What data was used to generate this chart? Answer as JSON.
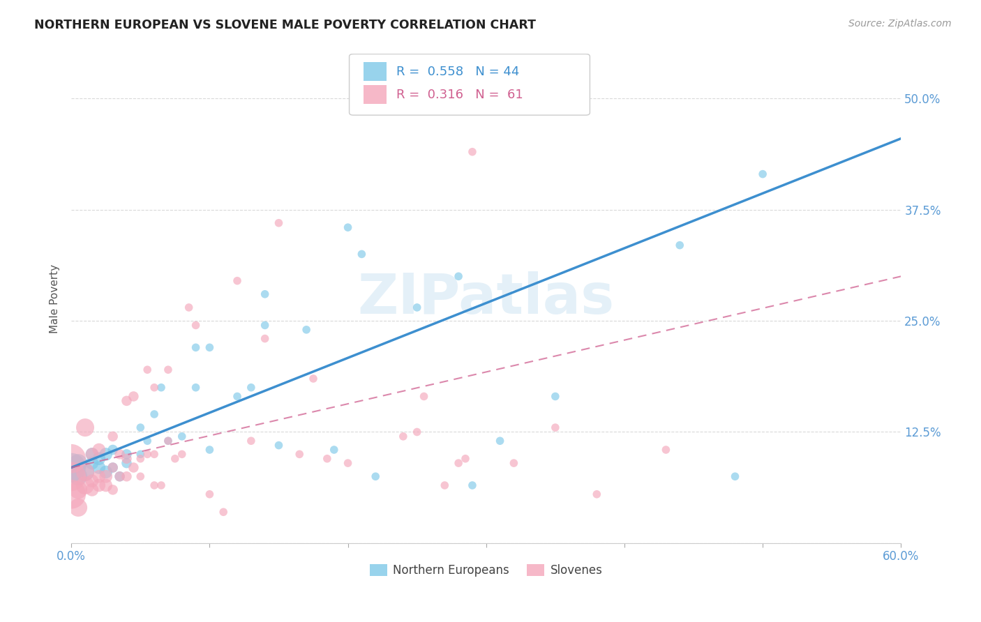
{
  "title": "NORTHERN EUROPEAN VS SLOVENE MALE POVERTY CORRELATION CHART",
  "source": "Source: ZipAtlas.com",
  "ylabel": "Male Poverty",
  "watermark": "ZIPatlas",
  "xlim": [
    0.0,
    0.6
  ],
  "ylim": [
    0.0,
    0.55
  ],
  "yticks": [
    0.0,
    0.125,
    0.25,
    0.375,
    0.5
  ],
  "ytick_labels_right": [
    "",
    "12.5%",
    "25.0%",
    "37.5%",
    "50.0%"
  ],
  "xticks": [
    0.0,
    0.1,
    0.2,
    0.3,
    0.4,
    0.5,
    0.6
  ],
  "xtick_labels": [
    "0.0%",
    "",
    "",
    "",
    "",
    "",
    "60.0%"
  ],
  "blue_R": 0.558,
  "blue_N": 44,
  "pink_R": 0.316,
  "pink_N": 61,
  "blue_color": "#7ec8e8",
  "pink_color": "#f4a7bb",
  "blue_line_color": "#3d8fcf",
  "pink_line_color": "#d06090",
  "title_color": "#222222",
  "axis_color": "#5b9bd5",
  "grid_color": "#d0d0d0",
  "blue_line_x0": 0.0,
  "blue_line_y0": 0.085,
  "blue_line_x1": 0.6,
  "blue_line_y1": 0.455,
  "pink_line_x0": 0.0,
  "pink_line_y0": 0.085,
  "pink_line_x1": 0.6,
  "pink_line_y1": 0.3,
  "blue_points_x": [
    0.0,
    0.005,
    0.005,
    0.01,
    0.015,
    0.015,
    0.02,
    0.02,
    0.025,
    0.025,
    0.03,
    0.03,
    0.035,
    0.04,
    0.04,
    0.05,
    0.05,
    0.055,
    0.06,
    0.065,
    0.07,
    0.08,
    0.09,
    0.09,
    0.1,
    0.1,
    0.12,
    0.13,
    0.14,
    0.14,
    0.15,
    0.17,
    0.19,
    0.2,
    0.21,
    0.22,
    0.25,
    0.28,
    0.29,
    0.31,
    0.35,
    0.44,
    0.48,
    0.5
  ],
  "blue_points_y": [
    0.085,
    0.075,
    0.09,
    0.08,
    0.09,
    0.1,
    0.085,
    0.095,
    0.08,
    0.1,
    0.085,
    0.105,
    0.075,
    0.09,
    0.1,
    0.1,
    0.13,
    0.115,
    0.145,
    0.175,
    0.115,
    0.12,
    0.22,
    0.175,
    0.105,
    0.22,
    0.165,
    0.175,
    0.245,
    0.28,
    0.11,
    0.24,
    0.105,
    0.355,
    0.325,
    0.075,
    0.265,
    0.3,
    0.065,
    0.115,
    0.165,
    0.335,
    0.075,
    0.415
  ],
  "pink_points_x": [
    0.0,
    0.0,
    0.0,
    0.005,
    0.005,
    0.01,
    0.01,
    0.01,
    0.015,
    0.015,
    0.015,
    0.02,
    0.02,
    0.02,
    0.025,
    0.025,
    0.03,
    0.03,
    0.03,
    0.035,
    0.035,
    0.04,
    0.04,
    0.04,
    0.045,
    0.045,
    0.05,
    0.05,
    0.055,
    0.055,
    0.06,
    0.06,
    0.06,
    0.065,
    0.07,
    0.07,
    0.075,
    0.08,
    0.085,
    0.09,
    0.1,
    0.11,
    0.12,
    0.13,
    0.14,
    0.15,
    0.165,
    0.175,
    0.185,
    0.2,
    0.24,
    0.25,
    0.255,
    0.27,
    0.28,
    0.285,
    0.29,
    0.32,
    0.35,
    0.38,
    0.43
  ],
  "pink_points_y": [
    0.055,
    0.075,
    0.095,
    0.04,
    0.06,
    0.065,
    0.08,
    0.13,
    0.06,
    0.07,
    0.1,
    0.065,
    0.075,
    0.105,
    0.065,
    0.075,
    0.06,
    0.085,
    0.12,
    0.075,
    0.1,
    0.075,
    0.095,
    0.16,
    0.085,
    0.165,
    0.075,
    0.095,
    0.1,
    0.195,
    0.065,
    0.1,
    0.175,
    0.065,
    0.115,
    0.195,
    0.095,
    0.1,
    0.265,
    0.245,
    0.055,
    0.035,
    0.295,
    0.115,
    0.23,
    0.36,
    0.1,
    0.185,
    0.095,
    0.09,
    0.12,
    0.125,
    0.165,
    0.065,
    0.09,
    0.095,
    0.44,
    0.09,
    0.13,
    0.055,
    0.105
  ]
}
